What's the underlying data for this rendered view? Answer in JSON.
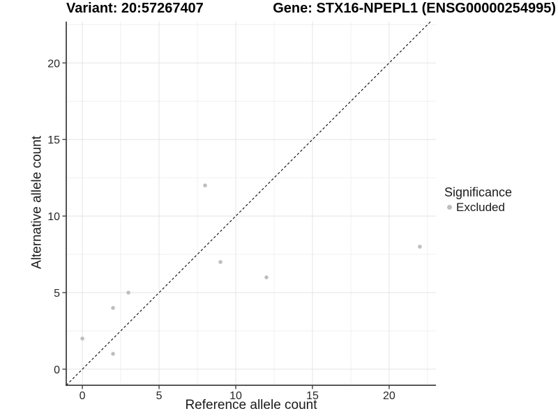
{
  "chart_data": {
    "type": "scatter",
    "titles": {
      "variant": "Variant: 20:57267407",
      "gene": "Gene: STX16-NPEPL1 (ENSG00000254995)"
    },
    "xlabel": "Reference allele count",
    "ylabel": "Alternative allele count",
    "xticks": [
      0,
      5,
      10,
      15,
      20
    ],
    "yticks": [
      0,
      5,
      10,
      15,
      20
    ],
    "xticks_minor": [
      2.5,
      7.5,
      12.5,
      17.5,
      22.5
    ],
    "yticks_minor": [
      2.5,
      7.5,
      12.5,
      17.5,
      22.5
    ],
    "xlim": [
      -1.05,
      23.05
    ],
    "ylim": [
      -1.05,
      22.7
    ],
    "grid": "major+minor",
    "background": "#ffffff",
    "series": [
      {
        "name": "Excluded",
        "color": "#bebebe",
        "points": [
          [
            0,
            2
          ],
          [
            2,
            1
          ],
          [
            2,
            4
          ],
          [
            3,
            5
          ],
          [
            8,
            12
          ],
          [
            9,
            7
          ],
          [
            12,
            6
          ],
          [
            22,
            8
          ]
        ]
      }
    ],
    "reference_line": {
      "kind": "identity",
      "style": "dashed",
      "color": "#1a1a1a"
    },
    "legend": {
      "title": "Significance",
      "position": "right",
      "items": [
        {
          "label": "Excluded",
          "color": "#bebebe"
        }
      ]
    },
    "colors": {
      "axis": "#404040",
      "grid_major": "#e4e4e4",
      "grid_minor": "#f0f0f0",
      "tick_text": "#262626"
    }
  }
}
